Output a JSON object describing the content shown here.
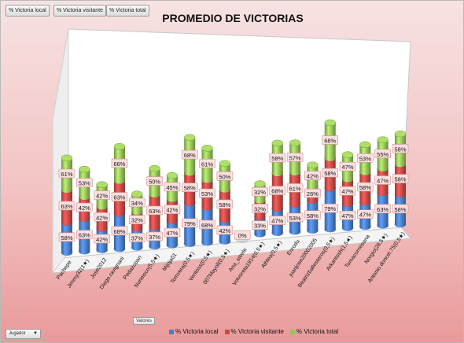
{
  "toolbar": {
    "btn1": "% Victoria local",
    "btn2": "% Victoria visitante",
    "btn3": "% Victoria total"
  },
  "valores_label": "Valores",
  "jugador_label": "Jugador",
  "colors": {
    "local": "#4a7fc8",
    "visitante": "#c84a48",
    "total": "#97c25a",
    "background_top": "#f7e2e2",
    "background_bottom": "#e99a9a"
  },
  "chart_data": {
    "type": "bar",
    "subtype": "3d-stacked-cylinder",
    "title": "PROMEDIO DE VICTORIAS",
    "legend_position": "bottom",
    "categories": [
      "Pachepe",
      "Jimmy32(1★)",
      "Jose2012",
      "Diego.ravignani",
      "Pedazopan",
      "Nurieisco(5,5★)",
      "Mijoja01",
      "Tomvera(0,5★)",
      "Ventoss(0,5★)",
      "007Mayoll(0,5★)",
      "Ana_steele",
      "Volvoreta1914(0,5★)",
      "Athlea(0,5★)",
      "Enrodu",
      "juanjose20002005",
      "Beatrizballesteros(0,5★)",
      "Arkantosh(1,5★)",
      "Tomacornesana",
      "Norgio(28,5★)",
      "Antonio.doncel.75(0,5★)"
    ],
    "series": [
      {
        "name": "% Victoria local",
        "labels": [
          "58%",
          "63%",
          "42%",
          "68%",
          "37%",
          "37%",
          "47%",
          "79%",
          "68%",
          "42%",
          "0%",
          "33%",
          "47%",
          "53%",
          "58%",
          "79%",
          "47%",
          "47%",
          "63%",
          "58%"
        ],
        "values": [
          58,
          63,
          42,
          68,
          37,
          37,
          47,
          79,
          68,
          42,
          0,
          33,
          47,
          53,
          58,
          79,
          47,
          47,
          63,
          58
        ]
      },
      {
        "name": "% Victoria visitante",
        "labels": [
          "63%",
          "42%",
          "42%",
          "63%",
          "32%",
          "63%",
          "42%",
          "58%",
          "53%",
          "58%",
          "",
          "32%",
          "68%",
          "61%",
          "26%",
          "58%",
          "47%",
          "58%",
          "47%",
          "58%"
        ],
        "values": [
          63,
          42,
          42,
          63,
          32,
          63,
          42,
          58,
          53,
          58,
          0,
          32,
          68,
          61,
          26,
          58,
          47,
          58,
          47,
          58
        ]
      },
      {
        "name": "% Victoria total",
        "labels": [
          "61%",
          "53%",
          "42%",
          "66%",
          "34%",
          "50%",
          "45%",
          "68%",
          "61%",
          "50%",
          "",
          "32%",
          "58%",
          "57%",
          "42%",
          "68%",
          "47%",
          "53%",
          "55%",
          "58%"
        ],
        "values": [
          61,
          53,
          42,
          66,
          34,
          50,
          45,
          68,
          61,
          50,
          0,
          32,
          58,
          57,
          42,
          68,
          47,
          53,
          55,
          58
        ]
      }
    ]
  }
}
